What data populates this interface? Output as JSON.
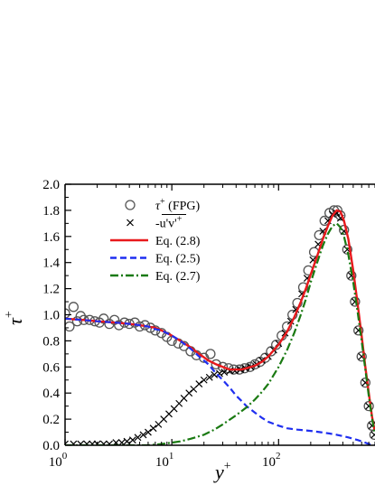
{
  "chart_data": {
    "type": "line",
    "title": "",
    "xlabel": "y",
    "xlabel_sup": "+",
    "ylabel": "τ",
    "ylabel_sup": "+",
    "x_scale": "log",
    "xlim": [
      1,
      800
    ],
    "ylim": [
      0,
      2.0
    ],
    "x_ticks": [
      1,
      10,
      100
    ],
    "x_tick_labels": [
      {
        "base": "10",
        "exp": "0"
      },
      {
        "base": "10",
        "exp": "1"
      },
      {
        "base": "10",
        "exp": "2"
      }
    ],
    "y_ticks": [
      0.0,
      0.2,
      0.4,
      0.6,
      0.8,
      1.0,
      1.2,
      1.4,
      1.6,
      1.8,
      2.0
    ],
    "y_tick_labels": [
      "0.0",
      "0.2",
      "0.4",
      "0.6",
      "0.8",
      "1.0",
      "1.2",
      "1.4",
      "1.6",
      "1.8",
      "2.0"
    ],
    "grid": false,
    "legend_position": "top-left",
    "series": [
      {
        "name": "τ+ (FPG)",
        "label_main": "τ",
        "label_sup": "+",
        "label_rest": " (FPG)",
        "style": "open-circle",
        "color": "#555555",
        "x": [
          1.0,
          1.1,
          1.2,
          1.3,
          1.4,
          1.5,
          1.7,
          1.9,
          2.1,
          2.3,
          2.6,
          2.9,
          3.2,
          3.6,
          4.0,
          4.5,
          5.0,
          5.6,
          6.3,
          7.0,
          8.0,
          9.0,
          10.0,
          11.5,
          13.0,
          15.0,
          17.0,
          20.0,
          23.0,
          26.0,
          30.0,
          34.0,
          38.0,
          43.0,
          48.0,
          54.0,
          60.0,
          67.0,
          75.0,
          85.0,
          95.0,
          107.0,
          120.0,
          135.0,
          150.0,
          170.0,
          190.0,
          215.0,
          240.0,
          270.0,
          300.0,
          330.0,
          355.0,
          380.0,
          410.0,
          440.0,
          480.0,
          520.0,
          560.0,
          600.0,
          650.0,
          700.0,
          750.0,
          790.0
        ],
        "y": [
          1.01,
          0.91,
          1.06,
          0.95,
          0.99,
          0.96,
          0.96,
          0.95,
          0.94,
          0.97,
          0.93,
          0.96,
          0.92,
          0.94,
          0.93,
          0.94,
          0.91,
          0.92,
          0.9,
          0.88,
          0.86,
          0.83,
          0.8,
          0.78,
          0.76,
          0.72,
          0.69,
          0.67,
          0.7,
          0.62,
          0.6,
          0.59,
          0.58,
          0.58,
          0.59,
          0.6,
          0.62,
          0.64,
          0.67,
          0.72,
          0.77,
          0.84,
          0.91,
          1.0,
          1.09,
          1.21,
          1.34,
          1.48,
          1.61,
          1.72,
          1.78,
          1.8,
          1.8,
          1.76,
          1.65,
          1.5,
          1.3,
          1.1,
          0.88,
          0.68,
          0.48,
          0.3,
          0.15,
          0.08
        ]
      },
      {
        "name": "-u'v'+",
        "label_main": "-u'v'",
        "label_sup": "+",
        "label_rest": "",
        "style": "cross",
        "color": "#000000",
        "x": [
          1.0,
          1.2,
          1.4,
          1.6,
          1.8,
          2.0,
          2.3,
          2.6,
          3.0,
          3.4,
          3.8,
          4.3,
          4.8,
          5.4,
          6.0,
          6.7,
          7.5,
          8.4,
          9.4,
          10.5,
          11.7,
          13.0,
          14.5,
          16.0,
          18.0,
          20.0,
          22.5,
          25.0,
          28.0,
          31.0,
          35.0,
          39.0,
          44.0,
          49.0,
          55.0,
          62.0,
          70.0,
          80.0,
          90.0,
          100.0,
          115.0,
          130.0,
          145.0,
          165.0,
          185.0,
          210.0,
          235.0,
          260.0,
          290.0,
          320.0,
          350.0,
          380.0,
          410.0,
          440.0,
          480.0,
          520.0,
          560.0,
          600.0,
          650.0,
          700.0,
          750.0,
          790.0
        ],
        "y": [
          0.01,
          0.01,
          0.01,
          0.01,
          0.01,
          0.01,
          0.01,
          0.01,
          0.02,
          0.02,
          0.03,
          0.04,
          0.06,
          0.08,
          0.1,
          0.13,
          0.16,
          0.2,
          0.24,
          0.28,
          0.32,
          0.36,
          0.4,
          0.43,
          0.47,
          0.5,
          0.52,
          0.54,
          0.55,
          0.56,
          0.57,
          0.57,
          0.58,
          0.59,
          0.6,
          0.62,
          0.65,
          0.68,
          0.73,
          0.78,
          0.86,
          0.95,
          1.04,
          1.16,
          1.28,
          1.42,
          1.54,
          1.64,
          1.72,
          1.77,
          1.78,
          1.74,
          1.64,
          1.5,
          1.3,
          1.1,
          0.88,
          0.68,
          0.48,
          0.3,
          0.15,
          0.08
        ]
      },
      {
        "name": "Eq. (2.8)",
        "label_main": "Eq. (2.8)",
        "label_sup": "",
        "label_rest": "",
        "style": "solid",
        "color": "#e8191c",
        "x": [
          1.0,
          1.5,
          2.0,
          3.0,
          4.0,
          5.0,
          6.0,
          7.0,
          8.0,
          10.0,
          12.0,
          15.0,
          18.0,
          22.0,
          26.0,
          30.0,
          35.0,
          40.0,
          45.0,
          50.0,
          60.0,
          70.0,
          80.0,
          100.0,
          120.0,
          140.0,
          160.0,
          180.0,
          200.0,
          230.0,
          260.0,
          290.0,
          320.0,
          350.0,
          380.0,
          410.0,
          450.0,
          500.0,
          550.0,
          600.0,
          650.0,
          700.0,
          750.0,
          790.0
        ],
        "y": [
          0.97,
          0.96,
          0.95,
          0.94,
          0.93,
          0.92,
          0.91,
          0.9,
          0.88,
          0.84,
          0.8,
          0.75,
          0.7,
          0.65,
          0.62,
          0.6,
          0.58,
          0.58,
          0.58,
          0.59,
          0.61,
          0.64,
          0.68,
          0.77,
          0.87,
          0.98,
          1.09,
          1.2,
          1.31,
          1.45,
          1.58,
          1.68,
          1.76,
          1.8,
          1.79,
          1.72,
          1.58,
          1.34,
          1.08,
          0.84,
          0.6,
          0.4,
          0.22,
          0.12
        ]
      },
      {
        "name": "Eq. (2.5)",
        "label_main": "Eq. (2.5)",
        "label_sup": "",
        "label_rest": "",
        "style": "dashed",
        "color": "#1f2ff0",
        "x": [
          1.0,
          1.5,
          2.0,
          3.0,
          4.0,
          5.0,
          6.0,
          7.0,
          8.0,
          10.0,
          12.0,
          15.0,
          18.0,
          22.0,
          26.0,
          30.0,
          35.0,
          40.0,
          45.0,
          50.0,
          60.0,
          70.0,
          80.0,
          100.0,
          120.0,
          150.0,
          200.0,
          250.0,
          300.0,
          350.0,
          400.0,
          450.0,
          500.0,
          550.0,
          600.0,
          650.0,
          700.0,
          750.0,
          790.0
        ],
        "y": [
          0.97,
          0.96,
          0.95,
          0.94,
          0.93,
          0.92,
          0.91,
          0.89,
          0.88,
          0.84,
          0.8,
          0.74,
          0.68,
          0.62,
          0.55,
          0.5,
          0.44,
          0.38,
          0.34,
          0.3,
          0.25,
          0.21,
          0.18,
          0.15,
          0.13,
          0.12,
          0.11,
          0.1,
          0.09,
          0.08,
          0.07,
          0.06,
          0.05,
          0.04,
          0.03,
          0.02,
          0.01,
          0.0,
          0.0
        ]
      },
      {
        "name": "Eq. (2.7)",
        "label_main": "Eq. (2.7)",
        "label_sup": "",
        "label_rest": "",
        "style": "dash-dot",
        "color": "#1a7a12",
        "x": [
          1.0,
          2.0,
          4.0,
          6.0,
          8.0,
          10.0,
          12.0,
          15.0,
          20.0,
          25.0,
          30.0,
          40.0,
          50.0,
          60.0,
          70.0,
          80.0,
          100.0,
          120.0,
          140.0,
          160.0,
          180.0,
          200.0,
          230.0,
          260.0,
          290.0,
          320.0,
          350.0,
          380.0,
          410.0,
          450.0,
          500.0,
          550.0,
          600.0,
          650.0,
          700.0,
          750.0,
          790.0
        ],
        "y": [
          0.0,
          0.0,
          0.0,
          0.0,
          0.01,
          0.02,
          0.03,
          0.05,
          0.08,
          0.12,
          0.16,
          0.23,
          0.29,
          0.35,
          0.41,
          0.47,
          0.6,
          0.73,
          0.86,
          0.99,
          1.12,
          1.25,
          1.4,
          1.53,
          1.62,
          1.68,
          1.7,
          1.67,
          1.6,
          1.46,
          1.25,
          1.02,
          0.8,
          0.58,
          0.38,
          0.21,
          0.1
        ]
      }
    ]
  }
}
